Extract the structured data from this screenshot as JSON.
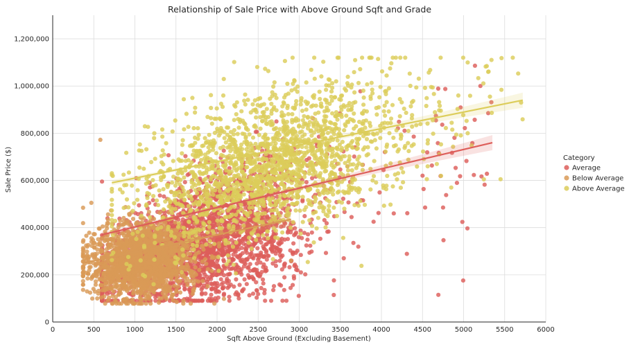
{
  "chart_data": {
    "type": "scatter",
    "title": "Relationship of Sale Price with Above Ground Sqft and Grade",
    "xlabel": "Sqft Above Ground (Excluding Basement)",
    "ylabel": "Sale Price ($)",
    "xlim": [
      0,
      6000
    ],
    "ylim": [
      0,
      1300000
    ],
    "x_ticks": [
      0,
      500,
      1000,
      1500,
      2000,
      2500,
      3000,
      3500,
      4000,
      4500,
      5000,
      5500,
      6000
    ],
    "x_tick_labels": [
      "0",
      "500",
      "1000",
      "1500",
      "2000",
      "2500",
      "3000",
      "3500",
      "4000",
      "4500",
      "5000",
      "5500",
      "6000"
    ],
    "y_ticks": [
      0,
      200000,
      400000,
      600000,
      800000,
      1000000,
      1200000
    ],
    "y_tick_labels": [
      "0",
      "200,000",
      "400,000",
      "600,000",
      "800,000",
      "1,000,000",
      "1,200,000"
    ],
    "grid": true,
    "legend": {
      "title": "Category",
      "placement": "right"
    },
    "series": [
      {
        "name": "Average",
        "color": "#dd5e5a",
        "x_range": [
          600,
          5350
        ],
        "y_cap": 1120000,
        "trend": {
          "x": [
            600,
            5350
          ],
          "y": [
            370000,
            760000
          ]
        },
        "outliers": [
          [
            4750,
            485000
          ],
          [
            5300,
            885000
          ],
          [
            4150,
            460000
          ],
          [
            4500,
            620000
          ]
        ]
      },
      {
        "name": "Below Average",
        "color": "#d99a57",
        "x_range": [
          370,
          2900
        ],
        "y_cap": 780000,
        "trend": {
          "x": [
            370,
            2900
          ],
          "y": [
            250000,
            435000
          ]
        },
        "outliers": [
          [
            580,
            772000
          ],
          [
            470,
            505000
          ],
          [
            390,
            270000
          ],
          [
            2900,
            260000
          ]
        ]
      },
      {
        "name": "Above Average",
        "color": "#dccd5a",
        "x_range": [
          720,
          5720
        ],
        "y_cap": 1120000,
        "trend": {
          "x": [
            720,
            5720
          ],
          "y": [
            590000,
            940000
          ]
        },
        "outliers": [
          [
            5450,
            605000
          ],
          [
            5700,
            930000
          ],
          [
            5050,
            800000
          ],
          [
            4850,
            570000
          ],
          [
            5050,
            1100000
          ],
          [
            5300,
            1060000
          ]
        ]
      }
    ]
  }
}
